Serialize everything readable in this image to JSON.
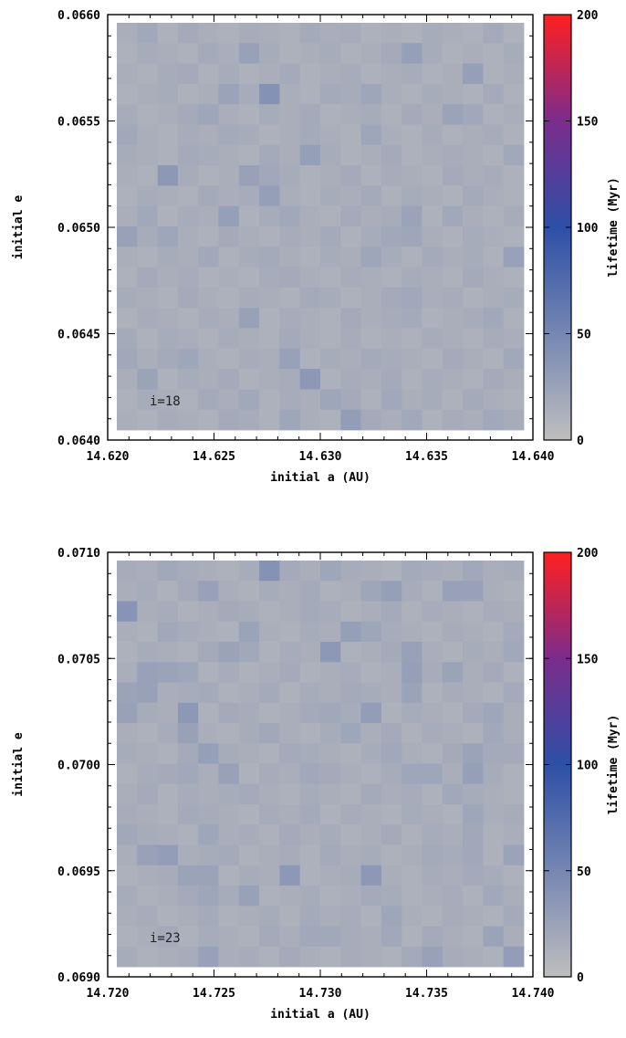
{
  "colorbar": {
    "label": "lifetime (Myr)",
    "range": [
      0,
      200
    ],
    "ticks": [
      "0",
      "50",
      "100",
      "150",
      "200"
    ],
    "stops": [
      "#bebebe",
      "#2d4fa6",
      "#7b2c8c",
      "#ff2020"
    ]
  },
  "chart_data": [
    {
      "type": "heatmap",
      "xlabel": "initial a (AU)",
      "ylabel": "initial e",
      "annotation": "i=18",
      "xlim": [
        14.62,
        14.64
      ],
      "ylim": [
        0.064,
        0.066
      ],
      "xticks": [
        "14.620",
        "14.625",
        "14.630",
        "14.635",
        "14.640"
      ],
      "yticks": [
        "0.0640",
        "0.0645",
        "0.0650",
        "0.0655",
        "0.0660"
      ],
      "colorbar_label": "lifetime (Myr)",
      "zlim": [
        0,
        200
      ],
      "cols": 20,
      "rows": 20,
      "values_note_rows": "row 0 = highest e (top), rows go downward; values in Myr",
      "values": [
        [
          14,
          20,
          12,
          18,
          14,
          12,
          16,
          14,
          12,
          18,
          14,
          16,
          12,
          14,
          12,
          16,
          14,
          12,
          18,
          12
        ],
        [
          12,
          16,
          14,
          12,
          18,
          14,
          26,
          16,
          12,
          14,
          16,
          12,
          14,
          18,
          28,
          16,
          12,
          14,
          12,
          16
        ],
        [
          14,
          12,
          16,
          18,
          12,
          16,
          12,
          14,
          18,
          12,
          14,
          16,
          12,
          14,
          16,
          12,
          14,
          28,
          12,
          14
        ],
        [
          12,
          14,
          16,
          12,
          14,
          24,
          16,
          40,
          14,
          12,
          18,
          16,
          22,
          14,
          12,
          16,
          14,
          12,
          18,
          12
        ],
        [
          16,
          12,
          14,
          18,
          22,
          14,
          12,
          16,
          14,
          18,
          12,
          14,
          16,
          12,
          18,
          14,
          24,
          20,
          12,
          14
        ],
        [
          20,
          14,
          12,
          16,
          14,
          18,
          16,
          12,
          14,
          18,
          14,
          12,
          22,
          14,
          12,
          16,
          12,
          14,
          16,
          12
        ],
        [
          16,
          14,
          12,
          18,
          16,
          14,
          12,
          18,
          14,
          28,
          16,
          12,
          14,
          18,
          12,
          14,
          16,
          14,
          12,
          20
        ],
        [
          14,
          12,
          34,
          16,
          12,
          14,
          26,
          20,
          16,
          12,
          14,
          18,
          12,
          16,
          14,
          12,
          18,
          14,
          16,
          12
        ],
        [
          12,
          16,
          14,
          12,
          18,
          14,
          16,
          28,
          14,
          12,
          16,
          14,
          18,
          12,
          16,
          14,
          12,
          18,
          14,
          12
        ],
        [
          14,
          20,
          12,
          16,
          14,
          28,
          12,
          16,
          20,
          14,
          12,
          18,
          14,
          16,
          24,
          12,
          20,
          14,
          12,
          16
        ],
        [
          26,
          16,
          22,
          14,
          12,
          18,
          14,
          12,
          16,
          14,
          18,
          12,
          16,
          20,
          22,
          14,
          12,
          16,
          14,
          12
        ],
        [
          14,
          12,
          16,
          14,
          20,
          12,
          16,
          18,
          14,
          12,
          16,
          14,
          22,
          16,
          12,
          18,
          14,
          16,
          12,
          26
        ],
        [
          12,
          18,
          14,
          16,
          12,
          14,
          12,
          16,
          18,
          14,
          12,
          16,
          14,
          12,
          16,
          14,
          12,
          18,
          14,
          12
        ],
        [
          16,
          14,
          12,
          18,
          14,
          12,
          16,
          14,
          12,
          18,
          16,
          12,
          14,
          18,
          20,
          14,
          16,
          12,
          14,
          16
        ],
        [
          12,
          16,
          14,
          12,
          16,
          14,
          26,
          12,
          16,
          14,
          12,
          18,
          14,
          16,
          18,
          12,
          14,
          16,
          20,
          12
        ],
        [
          18,
          12,
          16,
          14,
          12,
          16,
          14,
          12,
          18,
          14,
          12,
          16,
          12,
          14,
          12,
          16,
          14,
          12,
          16,
          14
        ],
        [
          20,
          14,
          18,
          22,
          14,
          12,
          16,
          14,
          26,
          12,
          16,
          14,
          18,
          16,
          14,
          12,
          18,
          14,
          12,
          20
        ],
        [
          14,
          24,
          12,
          16,
          14,
          18,
          12,
          14,
          16,
          34,
          12,
          16,
          14,
          18,
          12,
          16,
          14,
          12,
          18,
          14
        ],
        [
          12,
          16,
          14,
          12,
          18,
          14,
          20,
          12,
          16,
          14,
          22,
          18,
          12,
          20,
          14,
          16,
          12,
          18,
          14,
          12
        ],
        [
          14,
          12,
          16,
          14,
          12,
          18,
          16,
          12,
          22,
          14,
          12,
          30,
          18,
          14,
          20,
          12,
          16,
          14,
          20,
          16
        ]
      ]
    },
    {
      "type": "heatmap",
      "xlabel": "initial a (AU)",
      "ylabel": "initial e",
      "annotation": "i=23",
      "xlim": [
        14.72,
        14.74
      ],
      "ylim": [
        0.069,
        0.071
      ],
      "xticks": [
        "14.720",
        "14.725",
        "14.730",
        "14.735",
        "14.740"
      ],
      "yticks": [
        "0.0690",
        "0.0695",
        "0.0700",
        "0.0705",
        "0.0710"
      ],
      "colorbar_label": "lifetime (Myr)",
      "zlim": [
        0,
        200
      ],
      "cols": 20,
      "rows": 20,
      "values_note_rows": "row 0 = highest e (top), rows go downward; values in Myr",
      "values": [
        [
          16,
          14,
          20,
          16,
          14,
          12,
          16,
          40,
          18,
          14,
          22,
          16,
          14,
          12,
          18,
          16,
          14,
          20,
          14,
          16
        ],
        [
          14,
          16,
          12,
          18,
          26,
          14,
          12,
          16,
          14,
          18,
          12,
          14,
          22,
          28,
          16,
          12,
          26,
          26,
          14,
          12
        ],
        [
          38,
          14,
          16,
          12,
          14,
          18,
          16,
          12,
          14,
          18,
          16,
          12,
          14,
          18,
          12,
          16,
          14,
          12,
          16,
          14
        ],
        [
          14,
          12,
          20,
          16,
          14,
          12,
          24,
          14,
          12,
          16,
          14,
          28,
          22,
          16,
          14,
          12,
          16,
          14,
          12,
          18
        ],
        [
          12,
          16,
          14,
          12,
          18,
          24,
          20,
          12,
          16,
          14,
          34,
          12,
          14,
          18,
          26,
          14,
          12,
          16,
          14,
          20
        ],
        [
          14,
          26,
          24,
          22,
          12,
          16,
          12,
          14,
          18,
          12,
          14,
          16,
          12,
          14,
          28,
          16,
          24,
          14,
          18,
          12
        ],
        [
          24,
          26,
          14,
          16,
          18,
          12,
          14,
          18,
          12,
          16,
          14,
          18,
          16,
          14,
          24,
          12,
          16,
          14,
          12,
          18
        ],
        [
          26,
          16,
          14,
          34,
          12,
          18,
          16,
          12,
          14,
          18,
          20,
          16,
          30,
          12,
          16,
          14,
          12,
          18,
          22,
          14
        ],
        [
          14,
          12,
          16,
          26,
          14,
          12,
          16,
          20,
          14,
          12,
          16,
          22,
          14,
          18,
          12,
          16,
          14,
          12,
          20,
          14
        ],
        [
          16,
          14,
          12,
          18,
          28,
          16,
          14,
          12,
          18,
          16,
          14,
          12,
          16,
          20,
          14,
          12,
          18,
          24,
          18,
          18
        ],
        [
          12,
          16,
          18,
          20,
          14,
          26,
          12,
          16,
          14,
          20,
          18,
          14,
          12,
          16,
          22,
          22,
          14,
          28,
          16,
          12
        ],
        [
          14,
          18,
          12,
          16,
          14,
          16,
          18,
          14,
          12,
          16,
          14,
          12,
          18,
          14,
          16,
          12,
          20,
          16,
          14,
          12
        ],
        [
          16,
          14,
          12,
          18,
          16,
          14,
          12,
          16,
          14,
          18,
          12,
          16,
          14,
          12,
          16,
          14,
          12,
          22,
          14,
          16
        ],
        [
          20,
          16,
          14,
          12,
          22,
          14,
          16,
          12,
          18,
          14,
          16,
          12,
          14,
          18,
          12,
          16,
          14,
          20,
          12,
          14
        ],
        [
          14,
          26,
          30,
          14,
          16,
          18,
          12,
          14,
          16,
          12,
          18,
          14,
          16,
          12,
          14,
          18,
          16,
          20,
          12,
          24
        ],
        [
          12,
          14,
          16,
          24,
          24,
          12,
          16,
          14,
          34,
          12,
          14,
          16,
          34,
          14,
          12,
          16,
          14,
          18,
          16,
          12
        ],
        [
          16,
          12,
          14,
          18,
          22,
          16,
          26,
          12,
          14,
          16,
          12,
          14,
          18,
          16,
          12,
          14,
          16,
          12,
          20,
          14
        ],
        [
          14,
          16,
          12,
          14,
          18,
          12,
          14,
          16,
          12,
          18,
          14,
          16,
          12,
          22,
          14,
          12,
          16,
          14,
          12,
          18
        ],
        [
          12,
          14,
          18,
          12,
          16,
          14,
          12,
          18,
          14,
          20,
          20,
          16,
          14,
          20,
          12,
          18,
          14,
          12,
          24,
          14
        ],
        [
          16,
          12,
          14,
          16,
          26,
          14,
          16,
          12,
          18,
          14,
          12,
          16,
          14,
          12,
          18,
          26,
          16,
          14,
          12,
          30
        ]
      ]
    }
  ]
}
